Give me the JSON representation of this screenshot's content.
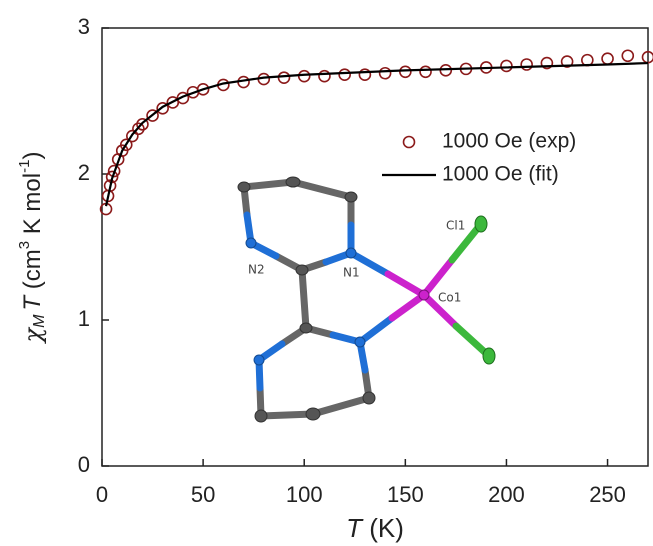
{
  "chart_data": {
    "type": "scatter-line",
    "xlabel": [
      "T",
      " (K)"
    ],
    "ylabel": [
      "χ",
      "M",
      "T",
      " (cm",
      "3",
      " K mol",
      "-1",
      ")"
    ],
    "xlim": [
      0,
      270
    ],
    "ylim": [
      0,
      3
    ],
    "xticks": [
      0,
      50,
      100,
      150,
      200,
      250
    ],
    "yticks": [
      0,
      1,
      2,
      3
    ],
    "legend": "right",
    "series": [
      {
        "name": "1000 Oe (exp)",
        "color": "#8b1a1a",
        "marker": "open-circle",
        "x": [
          2,
          3,
          4,
          5,
          6,
          8,
          10,
          12,
          15,
          18,
          20,
          25,
          30,
          35,
          40,
          45,
          50,
          60,
          70,
          80,
          90,
          100,
          110,
          120,
          130,
          140,
          150,
          160,
          170,
          180,
          190,
          200,
          210,
          220,
          230,
          240,
          250,
          260,
          270
        ],
        "values": [
          1.76,
          1.85,
          1.92,
          1.98,
          2.02,
          2.1,
          2.16,
          2.2,
          2.26,
          2.31,
          2.34,
          2.4,
          2.45,
          2.49,
          2.52,
          2.56,
          2.58,
          2.61,
          2.63,
          2.65,
          2.66,
          2.67,
          2.67,
          2.68,
          2.68,
          2.69,
          2.7,
          2.7,
          2.71,
          2.72,
          2.73,
          2.74,
          2.75,
          2.76,
          2.77,
          2.78,
          2.79,
          2.81,
          2.8
        ]
      },
      {
        "name": "1000 Oe (fit)",
        "color": "#000000",
        "marker": "line",
        "x": [
          2,
          5,
          10,
          15,
          20,
          30,
          40,
          50,
          60,
          70,
          80,
          100,
          150,
          200,
          250,
          270
        ],
        "values": [
          1.78,
          1.97,
          2.16,
          2.27,
          2.35,
          2.46,
          2.53,
          2.58,
          2.62,
          2.64,
          2.66,
          2.68,
          2.71,
          2.73,
          2.75,
          2.76
        ]
      }
    ],
    "inset_labels": [
      "N2",
      "N1",
      "Co1",
      "Cl1"
    ]
  }
}
